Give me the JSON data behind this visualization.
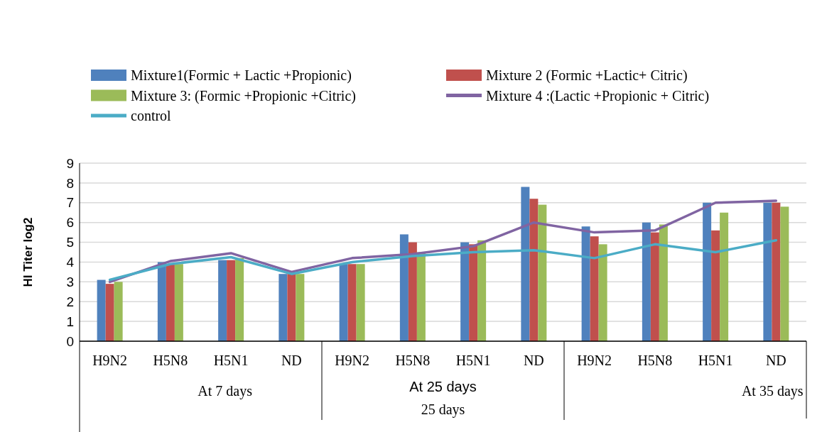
{
  "chart_data": {
    "type": "bar",
    "ylabel": "HI Titer log2",
    "categories": [
      "H9N2",
      "H5N8",
      "H5N1",
      "ND",
      "H9N2",
      "H5N8",
      "H5N1",
      "ND",
      "H9N2",
      "H5N8",
      "H5N1",
      "ND"
    ],
    "series": [
      {
        "name": "Mixture1(Formic + Lactic +Propionic)",
        "color": "#4f81bd",
        "values": [
          3.1,
          4.0,
          4.1,
          3.4,
          3.9,
          5.4,
          5.0,
          7.8,
          5.8,
          6.0,
          7.0,
          7.0
        ]
      },
      {
        "name": "Mixture 2 (Formic +Lactic+ Citric)",
        "color": "#c0504d",
        "values": [
          2.9,
          3.9,
          4.1,
          3.4,
          3.9,
          5.0,
          4.9,
          7.2,
          5.3,
          5.5,
          5.6,
          7.0
        ]
      },
      {
        "name": "Mixture 3: (Formic +Propionic +Citric)",
        "color": "#9bbb59",
        "values": [
          3.0,
          3.9,
          4.2,
          3.4,
          3.9,
          4.5,
          5.1,
          6.9,
          4.9,
          5.9,
          6.5,
          6.8
        ]
      },
      {
        "name": "Mixture 4 :(Lactic +Propionic + Citric)",
        "type": "line",
        "color": "#8064a2",
        "values": [
          3.0,
          4.05,
          4.45,
          3.5,
          4.2,
          4.4,
          4.8,
          6.0,
          5.5,
          5.6,
          7.0,
          7.1
        ]
      },
      {
        "name": "control",
        "type": "line",
        "color": "#4bacc6",
        "values": [
          3.1,
          3.9,
          4.25,
          3.4,
          4.0,
          4.3,
          4.5,
          4.6,
          4.2,
          4.9,
          4.5,
          5.1
        ]
      }
    ],
    "ylim": [
      0,
      9
    ],
    "yticks": [
      0,
      1,
      2,
      3,
      4,
      5,
      6,
      7,
      8,
      9
    ],
    "grid": "y",
    "legend": "top",
    "annotations": [
      "At 7 days",
      "At 25 days",
      "25 days",
      "At 35 days"
    ]
  }
}
